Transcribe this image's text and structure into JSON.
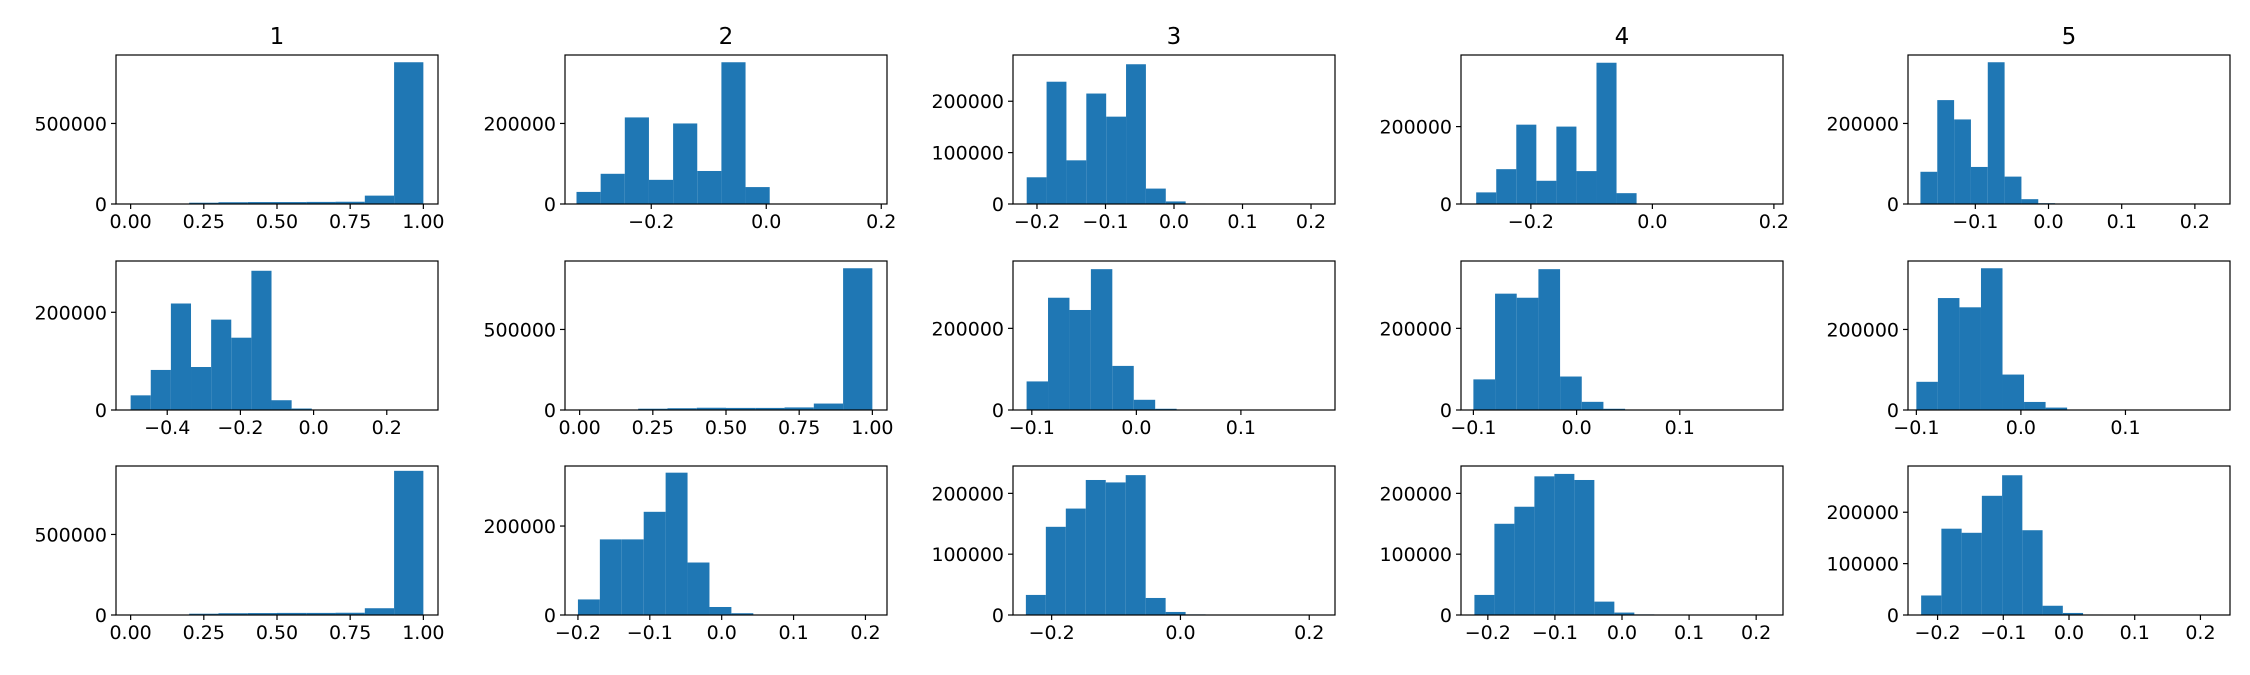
{
  "chart_data": [
    {
      "type": "bar",
      "title": "1",
      "xlabel": "",
      "ylabel": "",
      "xlim": [
        -0.05,
        1.05
      ],
      "ylim": [
        0,
        925000
      ],
      "bin_edges": [
        0.0,
        0.1,
        0.2,
        0.3,
        0.4,
        0.5,
        0.6,
        0.7,
        0.8,
        0.9,
        1.0
      ],
      "values": [
        500,
        2000,
        8000,
        11000,
        12000,
        12000,
        13000,
        14000,
        52000,
        880000
      ],
      "xticks": [
        "0.00",
        "0.25",
        "0.50",
        "0.75",
        "1.00"
      ],
      "yticks": [
        "0",
        "500000"
      ]
    },
    {
      "type": "bar",
      "title": "2",
      "xlabel": "",
      "ylabel": "",
      "xlim": [
        -0.35,
        0.21
      ],
      "ylim": [
        0,
        370000
      ],
      "bin_edges": [
        -0.33,
        -0.288,
        -0.246,
        -0.204,
        -0.162,
        -0.12,
        -0.078,
        -0.036,
        0.006,
        0.048,
        0.09
      ],
      "values": [
        30000,
        75000,
        215000,
        60000,
        200000,
        82000,
        352000,
        42000,
        1000,
        500
      ],
      "xticks": [
        "-0.2",
        "0.0",
        "0.2"
      ],
      "yticks": [
        "0",
        "200000"
      ]
    },
    {
      "type": "bar",
      "title": "3",
      "xlabel": "",
      "ylabel": "",
      "xlim": [
        -0.235,
        0.235
      ],
      "ylim": [
        0,
        290000
      ],
      "bin_edges": [
        -0.215,
        -0.186,
        -0.157,
        -0.128,
        -0.099,
        -0.07,
        -0.041,
        -0.012,
        0.017,
        0.046,
        0.075
      ],
      "values": [
        52000,
        238000,
        85000,
        215000,
        170000,
        272000,
        30000,
        5000,
        1000,
        500
      ],
      "xticks": [
        "-0.2",
        "-0.1",
        "0.0",
        "0.1",
        "0.2"
      ],
      "yticks": [
        "0",
        "100000",
        "200000"
      ]
    },
    {
      "type": "bar",
      "title": "4",
      "xlabel": "",
      "ylabel": "",
      "xlim": [
        -0.315,
        0.215
      ],
      "ylim": [
        0,
        385000
      ],
      "bin_edges": [
        -0.29,
        -0.257,
        -0.224,
        -0.191,
        -0.158,
        -0.125,
        -0.092,
        -0.059,
        -0.026,
        0.007,
        0.04
      ],
      "values": [
        30000,
        90000,
        205000,
        60000,
        200000,
        85000,
        365000,
        28000,
        1000,
        500
      ],
      "xticks": [
        "-0.2",
        "0.0",
        "0.2"
      ],
      "yticks": [
        "0",
        "200000"
      ]
    },
    {
      "type": "bar",
      "title": "5",
      "xlabel": "",
      "ylabel": "",
      "xlim": [
        -0.192,
        0.248
      ],
      "ylim": [
        0,
        370000
      ],
      "bin_edges": [
        -0.175,
        -0.152,
        -0.129,
        -0.106,
        -0.083,
        -0.06,
        -0.037,
        -0.014,
        0.009,
        0.032,
        0.055
      ],
      "values": [
        80000,
        258000,
        210000,
        92000,
        352000,
        68000,
        12000,
        2000,
        500,
        200
      ],
      "xticks": [
        "-0.1",
        "0.0",
        "0.1",
        "0.2"
      ],
      "yticks": [
        "0",
        "200000"
      ]
    },
    {
      "type": "bar",
      "title": "",
      "xlabel": "",
      "ylabel": "",
      "xlim": [
        -0.54,
        0.34
      ],
      "ylim": [
        0,
        305000
      ],
      "bin_edges": [
        -0.5,
        -0.445,
        -0.39,
        -0.335,
        -0.28,
        -0.225,
        -0.17,
        -0.115,
        -0.06,
        -0.005,
        0.05
      ],
      "values": [
        30000,
        82000,
        218000,
        88000,
        185000,
        148000,
        285000,
        20000,
        3000,
        500
      ],
      "xticks": [
        "-0.4",
        "-0.2",
        "0.0",
        "0.2"
      ],
      "yticks": [
        "0",
        "200000"
      ]
    },
    {
      "type": "bar",
      "title": "",
      "xlabel": "",
      "ylabel": "",
      "xlim": [
        -0.05,
        1.05
      ],
      "ylim": [
        0,
        925000
      ],
      "bin_edges": [
        0.0,
        0.1,
        0.2,
        0.3,
        0.4,
        0.5,
        0.6,
        0.7,
        0.8,
        0.9,
        1.0
      ],
      "values": [
        500,
        2000,
        8000,
        11000,
        14000,
        13000,
        13000,
        16000,
        40000,
        880000
      ],
      "xticks": [
        "0.00",
        "0.25",
        "0.50",
        "0.75",
        "1.00"
      ],
      "yticks": [
        "0",
        "500000"
      ]
    },
    {
      "type": "bar",
      "title": "",
      "xlabel": "",
      "ylabel": "",
      "xlim": [
        -0.118,
        0.19
      ],
      "ylim": [
        0,
        365000
      ],
      "bin_edges": [
        -0.105,
        -0.0845,
        -0.064,
        -0.0435,
        -0.023,
        -0.0025,
        0.018,
        0.0385,
        0.059,
        0.0795,
        0.1
      ],
      "values": [
        70000,
        275000,
        245000,
        345000,
        108000,
        25000,
        3000,
        1000,
        500,
        200
      ],
      "xticks": [
        "-0.1",
        "0.0",
        "0.1"
      ],
      "yticks": [
        "0",
        "200000"
      ]
    },
    {
      "type": "bar",
      "title": "",
      "xlabel": "",
      "ylabel": "",
      "xlim": [
        -0.112,
        0.2
      ],
      "ylim": [
        0,
        365000
      ],
      "bin_edges": [
        -0.1,
        -0.079,
        -0.058,
        -0.037,
        -0.016,
        0.005,
        0.026,
        0.047,
        0.068,
        0.089,
        0.11
      ],
      "values": [
        75000,
        285000,
        275000,
        345000,
        82000,
        20000,
        3000,
        1000,
        500,
        200
      ],
      "xticks": [
        "-0.1",
        "0.0",
        "0.1"
      ],
      "yticks": [
        "0",
        "200000"
      ]
    },
    {
      "type": "bar",
      "title": "",
      "xlabel": "",
      "ylabel": "",
      "xlim": [
        -0.108,
        0.2
      ],
      "ylim": [
        0,
        370000
      ],
      "bin_edges": [
        -0.1,
        -0.0794,
        -0.0588,
        -0.0382,
        -0.0176,
        0.003,
        0.0236,
        0.0442,
        0.0648,
        0.0854,
        0.106
      ],
      "values": [
        70000,
        278000,
        255000,
        352000,
        88000,
        20000,
        6000,
        1000,
        500,
        200
      ],
      "xticks": [
        "-0.1",
        "0.0",
        "0.1"
      ],
      "yticks": [
        "0",
        "200000"
      ]
    },
    {
      "type": "bar",
      "title": "",
      "xlabel": "",
      "ylabel": "",
      "xlim": [
        -0.05,
        1.05
      ],
      "ylim": [
        0,
        925000
      ],
      "bin_edges": [
        0.0,
        0.1,
        0.2,
        0.3,
        0.4,
        0.5,
        0.6,
        0.7,
        0.8,
        0.9,
        1.0
      ],
      "values": [
        500,
        2000,
        8000,
        11000,
        12000,
        13000,
        13000,
        14000,
        42000,
        895000
      ],
      "xticks": [
        "0.00",
        "0.25",
        "0.50",
        "0.75",
        "1.00"
      ],
      "yticks": [
        "0",
        "500000"
      ]
    },
    {
      "type": "bar",
      "title": "",
      "xlabel": "",
      "ylabel": "",
      "xlim": [
        -0.218,
        0.23
      ],
      "ylim": [
        0,
        335000
      ],
      "bin_edges": [
        -0.2,
        -0.1695,
        -0.139,
        -0.1085,
        -0.078,
        -0.0475,
        -0.017,
        0.0135,
        0.044,
        0.0745,
        0.105
      ],
      "values": [
        35000,
        170000,
        170000,
        232000,
        320000,
        118000,
        18000,
        4000,
        1000,
        200
      ],
      "xticks": [
        "-0.2",
        "-0.1",
        "0.0",
        "0.1",
        "0.2"
      ],
      "yticks": [
        "0",
        "200000"
      ]
    },
    {
      "type": "bar",
      "title": "",
      "xlabel": "",
      "ylabel": "",
      "xlim": [
        -0.26,
        0.24
      ],
      "ylim": [
        0,
        245000
      ],
      "bin_edges": [
        -0.24,
        -0.209,
        -0.178,
        -0.147,
        -0.116,
        -0.085,
        -0.054,
        -0.023,
        0.008,
        0.039,
        0.07
      ],
      "values": [
        33000,
        145000,
        175000,
        222000,
        218000,
        230000,
        28000,
        5000,
        1000,
        200
      ],
      "xticks": [
        "-0.2",
        "0.0",
        "0.2"
      ],
      "yticks": [
        "0",
        "100000",
        "200000"
      ]
    },
    {
      "type": "bar",
      "title": "",
      "xlabel": "",
      "ylabel": "",
      "xlim": [
        -0.24,
        0.24
      ],
      "ylim": [
        0,
        245000
      ],
      "bin_edges": [
        -0.22,
        -0.1902,
        -0.1604,
        -0.1306,
        -0.1008,
        -0.071,
        -0.0412,
        -0.0114,
        0.0184,
        0.0482,
        0.078
      ],
      "values": [
        33000,
        150000,
        178000,
        228000,
        232000,
        222000,
        22000,
        4000,
        1000,
        200
      ],
      "xticks": [
        "-0.2",
        "-0.1",
        "0.0",
        "0.1",
        "0.2"
      ],
      "yticks": [
        "0",
        "100000",
        "200000"
      ]
    },
    {
      "type": "bar",
      "title": "",
      "xlabel": "",
      "ylabel": "",
      "xlim": [
        -0.245,
        0.245
      ],
      "ylim": [
        0,
        290000
      ],
      "bin_edges": [
        -0.225,
        -0.1942,
        -0.1634,
        -0.1326,
        -0.1018,
        -0.071,
        -0.0402,
        -0.0094,
        0.0214,
        0.0522,
        0.083
      ],
      "values": [
        38000,
        168000,
        160000,
        232000,
        272000,
        165000,
        18000,
        4000,
        1000,
        200
      ],
      "xticks": [
        "-0.2",
        "-0.1",
        "0.0",
        "0.1",
        "0.2"
      ],
      "yticks": [
        "0",
        "100000",
        "200000"
      ]
    }
  ],
  "colors": {
    "bar": "#1f77b4",
    "axes": "#000000"
  }
}
